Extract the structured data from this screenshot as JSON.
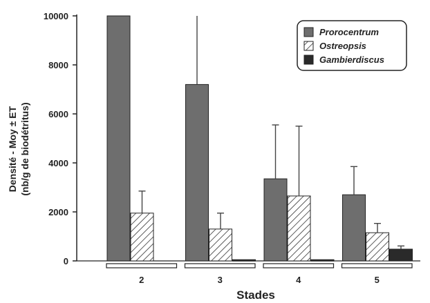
{
  "chart_data": {
    "type": "bar",
    "xlabel": "Stades",
    "ylabel_line1": "Densité - Moy ± ET",
    "ylabel_line2": "(nb/g de biodétritus)",
    "ylim": [
      0,
      10000
    ],
    "yticks": [
      0,
      2000,
      4000,
      6000,
      8000,
      10000
    ],
    "categories": [
      "2",
      "3",
      "4",
      "5"
    ],
    "series": [
      {
        "name": "Prorocentrum",
        "pattern": "solid-grey",
        "color": "#6e6e6e",
        "values": [
          10000,
          7200,
          3350,
          2700
        ],
        "errors": [
          0,
          2800,
          2200,
          1150
        ]
      },
      {
        "name": "Ostreopsis",
        "pattern": "hatched",
        "color": "#ffffff",
        "values": [
          1950,
          1300,
          2650,
          1150
        ],
        "errors": [
          900,
          650,
          2850,
          380
        ]
      },
      {
        "name": "Gambierdiscus",
        "pattern": "solid-black",
        "color": "#2a2a2a",
        "values": [
          0,
          50,
          50,
          480
        ],
        "errors": [
          0,
          0,
          0,
          130
        ]
      }
    ],
    "legend_position": "top-right",
    "grid": false
  }
}
